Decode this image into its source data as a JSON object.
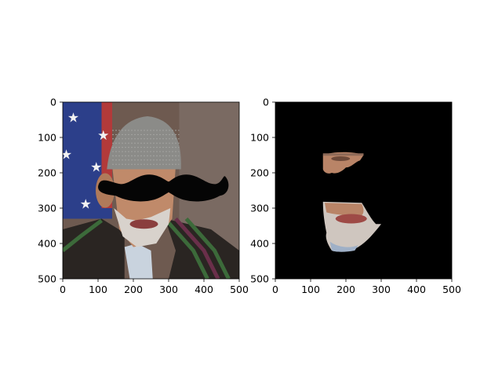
{
  "chart_data": [
    {
      "type": "image",
      "content": "photo-man-with-mustache-overlay",
      "xlim": [
        0,
        500
      ],
      "ylim": [
        500,
        0
      ],
      "xticks": [
        0,
        100,
        200,
        300,
        400,
        500
      ],
      "yticks": [
        0,
        100,
        200,
        300,
        400,
        500
      ],
      "mustache_span_x": [
        100,
        470
      ],
      "mustache_span_y": [
        190,
        285
      ]
    },
    {
      "type": "image",
      "content": "masked-face-fragments-on-black",
      "xlim": [
        0,
        500
      ],
      "ylim": [
        500,
        0
      ],
      "xticks": [
        0,
        100,
        200,
        300,
        400,
        500
      ],
      "yticks": [
        0,
        100,
        200,
        300,
        400,
        500
      ],
      "background_color": "#000000",
      "visible_regions": [
        {
          "name": "eye-region",
          "x": [
            135,
            250
          ],
          "y": [
            140,
            205
          ]
        },
        {
          "name": "mouth-chin-region",
          "x": [
            135,
            300
          ],
          "y": [
            280,
            425
          ]
        }
      ]
    }
  ],
  "colors": {
    "skin": "#c08a6a",
    "beard": "#d8d2cc",
    "hat": "#8b8b88",
    "coat": "#2a2522",
    "flag_blue": "#2c3f8a",
    "mustache": "#050505"
  }
}
